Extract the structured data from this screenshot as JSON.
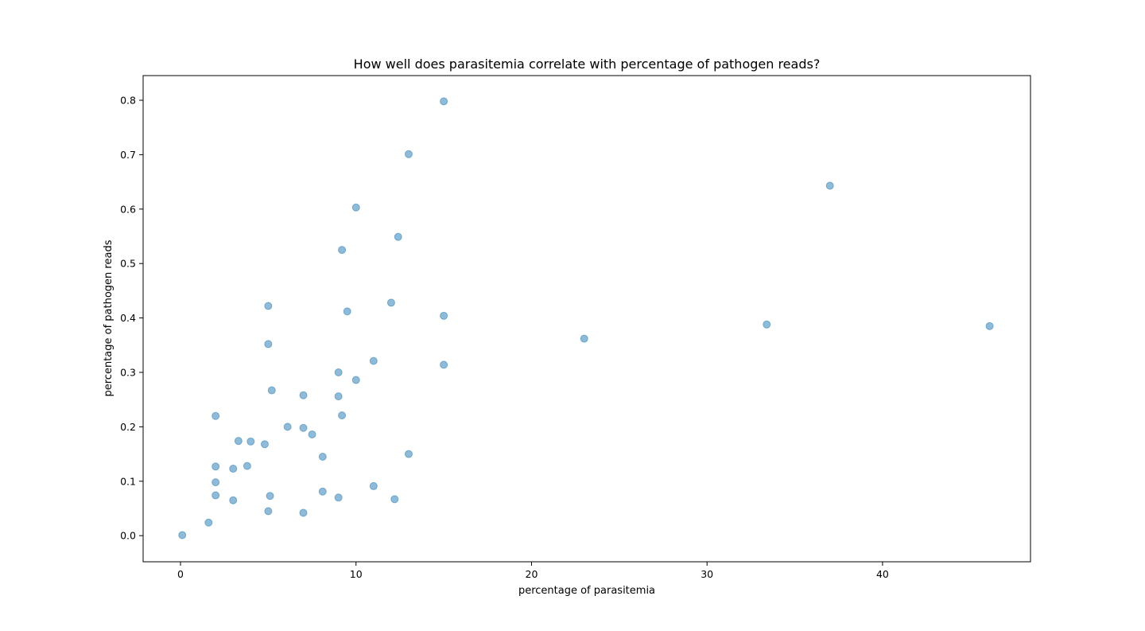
{
  "chart_data": {
    "type": "scatter",
    "title": "How well does parasitemia correlate with percentage of pathogen reads?",
    "xlabel": "percentage of parasitemia",
    "ylabel": "percentage of pathogen reads",
    "xlim": [
      -2.13,
      48.43
    ],
    "ylim": [
      -0.048,
      0.8453
    ],
    "xticks": [
      0,
      10,
      20,
      30,
      40
    ],
    "yticks": [
      0.0,
      0.1,
      0.2,
      0.3,
      0.4,
      0.5,
      0.6,
      0.7,
      0.8
    ],
    "xtick_labels": [
      "0",
      "10",
      "20",
      "30",
      "40"
    ],
    "ytick_labels": [
      "0.0",
      "0.1",
      "0.2",
      "0.3",
      "0.4",
      "0.5",
      "0.6",
      "0.7",
      "0.8"
    ],
    "grid": false,
    "marker_color": "#1f77b4",
    "marker_alpha": 0.5,
    "series": [
      {
        "points": [
          [
            0.1,
            0.001
          ],
          [
            1.6,
            0.024
          ],
          [
            2.0,
            0.22
          ],
          [
            2.0,
            0.127
          ],
          [
            2.0,
            0.098
          ],
          [
            2.0,
            0.074
          ],
          [
            3.0,
            0.123
          ],
          [
            3.0,
            0.065
          ],
          [
            3.3,
            0.174
          ],
          [
            3.8,
            0.128
          ],
          [
            4.0,
            0.173
          ],
          [
            4.8,
            0.168
          ],
          [
            5.0,
            0.422
          ],
          [
            5.0,
            0.352
          ],
          [
            5.0,
            0.045
          ],
          [
            5.1,
            0.073
          ],
          [
            5.2,
            0.267
          ],
          [
            6.1,
            0.2
          ],
          [
            7.0,
            0.258
          ],
          [
            7.0,
            0.198
          ],
          [
            7.0,
            0.042
          ],
          [
            7.5,
            0.186
          ],
          [
            8.1,
            0.145
          ],
          [
            8.1,
            0.081
          ],
          [
            9.0,
            0.3
          ],
          [
            9.0,
            0.256
          ],
          [
            9.0,
            0.07
          ],
          [
            9.2,
            0.525
          ],
          [
            9.2,
            0.221
          ],
          [
            9.5,
            0.412
          ],
          [
            10.0,
            0.603
          ],
          [
            10.0,
            0.286
          ],
          [
            11.0,
            0.321
          ],
          [
            11.0,
            0.091
          ],
          [
            12.0,
            0.428
          ],
          [
            12.2,
            0.067
          ],
          [
            12.4,
            0.549
          ],
          [
            13.0,
            0.701
          ],
          [
            13.0,
            0.15
          ],
          [
            15.0,
            0.798
          ],
          [
            15.0,
            0.404
          ],
          [
            15.0,
            0.314
          ],
          [
            23.0,
            0.362
          ],
          [
            33.4,
            0.388
          ],
          [
            37.0,
            0.643
          ],
          [
            46.1,
            0.385
          ]
        ]
      }
    ]
  }
}
